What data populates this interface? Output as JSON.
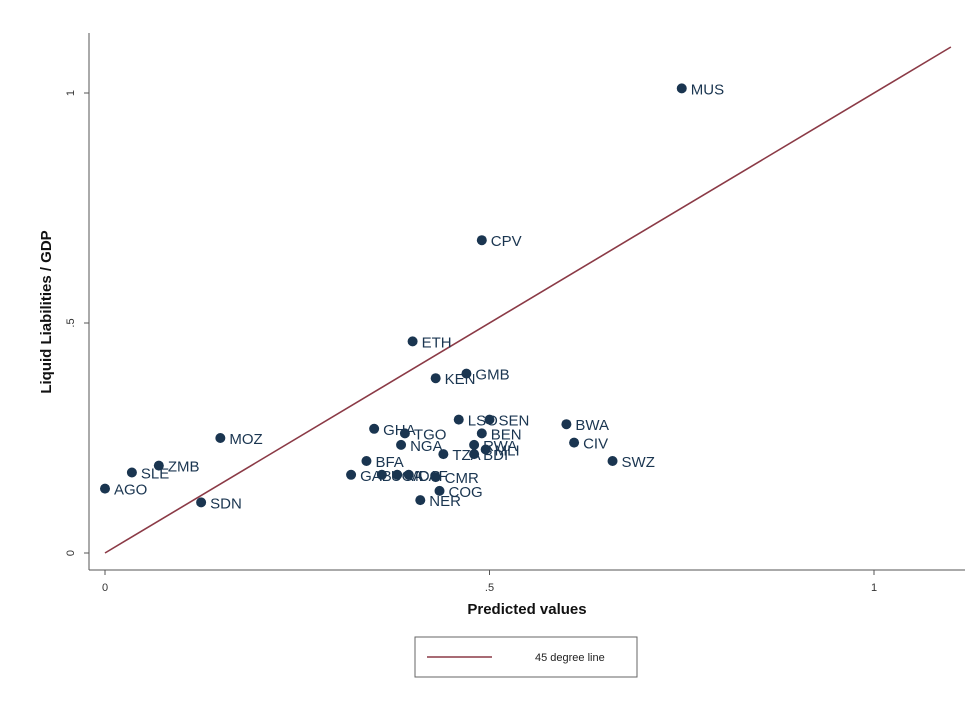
{
  "chart_data": {
    "type": "scatter",
    "xlabel": "Predicted values",
    "ylabel": "Liquid Liabilities / GDP",
    "xlim": [
      0,
      1.1
    ],
    "ylim": [
      0,
      1.1
    ],
    "x_ticks": [
      0,
      0.5,
      1
    ],
    "x_tick_labels": [
      "0",
      ".5",
      "1"
    ],
    "y_ticks": [
      0,
      0.5,
      1
    ],
    "y_tick_labels": [
      "0",
      ".5",
      "1"
    ],
    "grid": false,
    "points": [
      {
        "label": "MUS",
        "x": 0.75,
        "y": 1.01
      },
      {
        "label": "CPV",
        "x": 0.49,
        "y": 0.68
      },
      {
        "label": "ETH",
        "x": 0.4,
        "y": 0.46
      },
      {
        "label": "GMB",
        "x": 0.47,
        "y": 0.39
      },
      {
        "label": "KEN",
        "x": 0.43,
        "y": 0.38
      },
      {
        "label": "BWA",
        "x": 0.6,
        "y": 0.28
      },
      {
        "label": "LSO",
        "x": 0.46,
        "y": 0.29
      },
      {
        "label": "SEN",
        "x": 0.5,
        "y": 0.29
      },
      {
        "label": "GHA",
        "x": 0.35,
        "y": 0.27
      },
      {
        "label": "TGO",
        "x": 0.39,
        "y": 0.26
      },
      {
        "label": "BEN",
        "x": 0.49,
        "y": 0.26
      },
      {
        "label": "MOZ",
        "x": 0.15,
        "y": 0.25
      },
      {
        "label": "CIV",
        "x": 0.61,
        "y": 0.24
      },
      {
        "label": "NGA",
        "x": 0.385,
        "y": 0.235
      },
      {
        "label": "RWA",
        "x": 0.48,
        "y": 0.235
      },
      {
        "label": "MLI",
        "x": 0.495,
        "y": 0.225
      },
      {
        "label": "TZA",
        "x": 0.44,
        "y": 0.215
      },
      {
        "label": "BDI",
        "x": 0.48,
        "y": 0.215
      },
      {
        "label": "SWZ",
        "x": 0.66,
        "y": 0.2
      },
      {
        "label": "BFA",
        "x": 0.34,
        "y": 0.2
      },
      {
        "label": "ZMB",
        "x": 0.07,
        "y": 0.19
      },
      {
        "label": "SLE",
        "x": 0.035,
        "y": 0.175
      },
      {
        "label": "GAB",
        "x": 0.32,
        "y": 0.17
      },
      {
        "label": "UGA",
        "x": 0.36,
        "y": 0.17
      },
      {
        "label": "MDG",
        "x": 0.38,
        "y": 0.17
      },
      {
        "label": "CAF",
        "x": 0.395,
        "y": 0.17
      },
      {
        "label": "CMR",
        "x": 0.43,
        "y": 0.165
      },
      {
        "label": "AGO",
        "x": 0.0,
        "y": 0.14
      },
      {
        "label": "COG",
        "x": 0.435,
        "y": 0.135
      },
      {
        "label": "SDN",
        "x": 0.125,
        "y": 0.11
      },
      {
        "label": "NER",
        "x": 0.41,
        "y": 0.115
      }
    ],
    "reference_line": {
      "name": "45 degree line",
      "from": [
        0,
        0
      ],
      "to": [
        1.1,
        1.1
      ]
    },
    "legend_position": "bottom-center",
    "colors": {
      "marker": "#1a3550",
      "line": "#8b3a46",
      "axis": "#555555"
    }
  }
}
